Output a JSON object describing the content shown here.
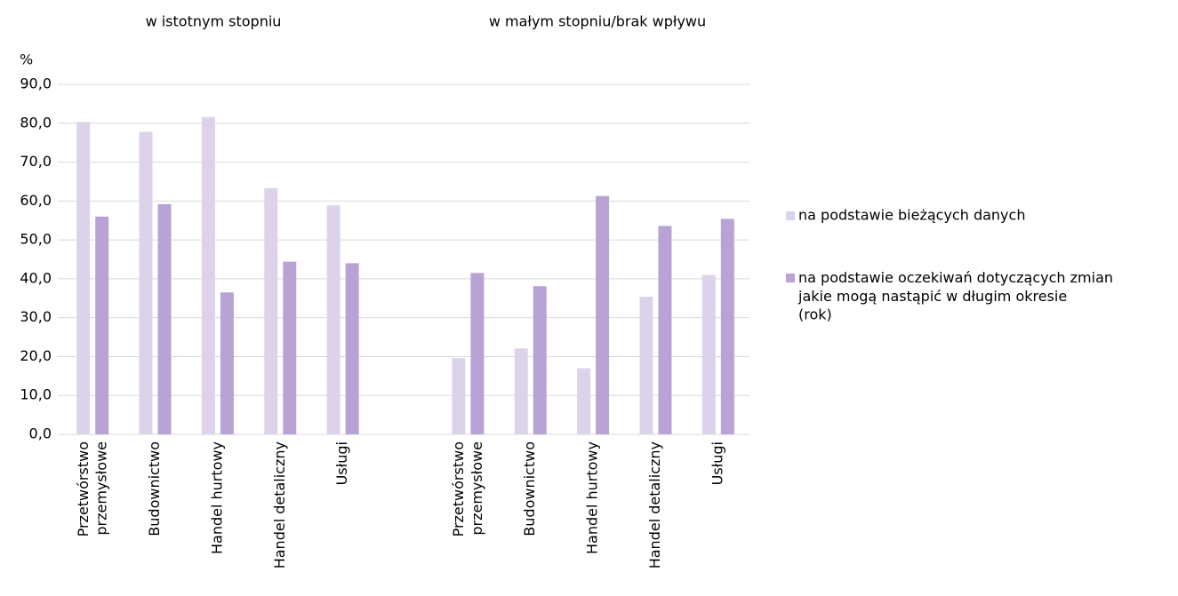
{
  "chart_data": {
    "type": "bar",
    "annotations": [
      "w istotnym stopniu",
      "w małym stopniu/brak wpływu"
    ],
    "y_label": "%",
    "categories": [
      "Przetwórstwo przemysłowe",
      "Budownictwo",
      "Handel hurtowy",
      "Handel detaliczny",
      "Usługi",
      null,
      "Przetwórstwo przemysłowe",
      "Budownictwo",
      "Handel hurtowy",
      "Handel detaliczny",
      "Usługi"
    ],
    "series": [
      {
        "name": "na podstawie bieżących danych",
        "color": "#dcd3ea",
        "values": [
          80.3,
          77.8,
          81.6,
          63.3,
          58.9,
          null,
          19.6,
          22.1,
          17.0,
          35.4,
          41.0
        ]
      },
      {
        "name": "na podstawie oczekiwań dotyczących zmian jakie mogą nastąpić w długim okresie (rok)",
        "color": "#b8a3d4",
        "values": [
          56.0,
          59.2,
          36.5,
          44.4,
          44.0,
          null,
          41.5,
          38.1,
          61.3,
          53.6,
          55.4
        ]
      }
    ],
    "ylim": [
      0,
      90
    ],
    "yticks": [
      {
        "value": 0,
        "label": "0,0"
      },
      {
        "value": 10,
        "label": "10,0"
      },
      {
        "value": 20,
        "label": "20,0"
      },
      {
        "value": 30,
        "label": "30,0"
      },
      {
        "value": 40,
        "label": "40,0"
      },
      {
        "value": 50,
        "label": "50,0"
      },
      {
        "value": 60,
        "label": "60,0"
      },
      {
        "value": 70,
        "label": "70,0"
      },
      {
        "value": 80,
        "label": "80,0"
      },
      {
        "value": 90,
        "label": "90,0"
      }
    ],
    "grid": true,
    "legend": "right"
  }
}
